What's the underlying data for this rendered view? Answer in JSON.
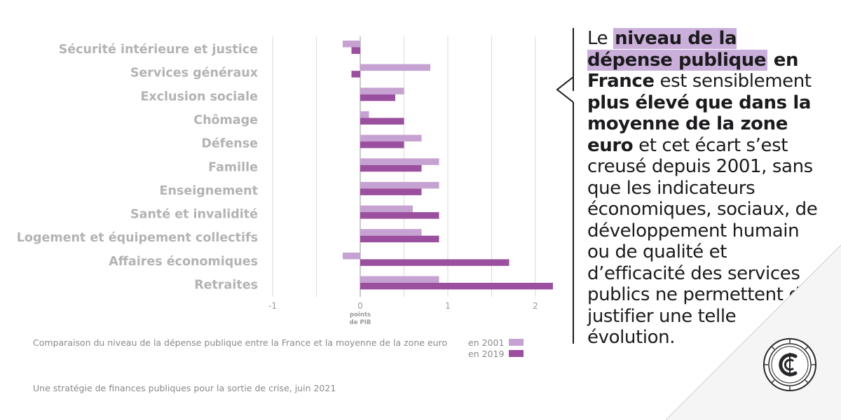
{
  "chart_data": {
    "type": "bar",
    "orientation": "horizontal",
    "categories": [
      "Sécurité intérieure et justice",
      "Services généraux",
      "Exclusion sociale",
      "Chômage",
      "Défense",
      "Famille",
      "Enseignement",
      "Santé et invalidité",
      "Logement et équipement collectifs",
      "Affaires économiques",
      "Retraites"
    ],
    "series": [
      {
        "name": "en 2001",
        "color": "#c5a2d2",
        "values": [
          -0.2,
          0.8,
          0.5,
          0.1,
          0.7,
          0.9,
          0.9,
          0.6,
          0.7,
          -0.2,
          0.9
        ]
      },
      {
        "name": "en 2019",
        "color": "#9b4f9f",
        "values": [
          -0.1,
          -0.1,
          0.4,
          0.5,
          0.5,
          0.7,
          0.7,
          0.9,
          0.9,
          1.7,
          2.2
        ]
      }
    ],
    "xlim": [
      -1,
      2.2
    ],
    "xticks": [
      "-1",
      "0",
      "1",
      "2"
    ],
    "xlabel": "points de PIB",
    "xlabel_lines": [
      "points",
      "de PIB"
    ],
    "grid": true,
    "legend_caption": "Comparaison du niveau de la dépense publique entre la France et la moyenne de la zone euro",
    "legend_placement": "bottom"
  },
  "source": "Une stratégie de finances publiques pour la sortie de crise, juin 2021",
  "quote": {
    "segments": [
      {
        "text": "Le ",
        "style": "normal"
      },
      {
        "text": "niveau de la dépense publique",
        "style": "highlight"
      },
      {
        "text": " en France",
        "style": "bold"
      },
      {
        "text": " est sensiblement ",
        "style": "normal"
      },
      {
        "text": "plus élevé que dans la moyenne de la zone euro",
        "style": "bold"
      },
      {
        "text": " et cet écart s’est creusé depuis 2001, sans que les indicateurs économiques, sociaux, de développement humain ou de qualité et d’efficacité des services publics ne permettent de justifier une telle évolution.",
        "style": "normal"
      }
    ]
  },
  "colors": {
    "accent_light": "#c5a2d2",
    "accent_dark": "#9b4f9f",
    "highlight": "#c9afd9",
    "text_dark": "#1c1a1d",
    "label_grey": "#b3b3b3"
  },
  "logo": {
    "icon": "cour-des-comptes-seal-icon"
  }
}
